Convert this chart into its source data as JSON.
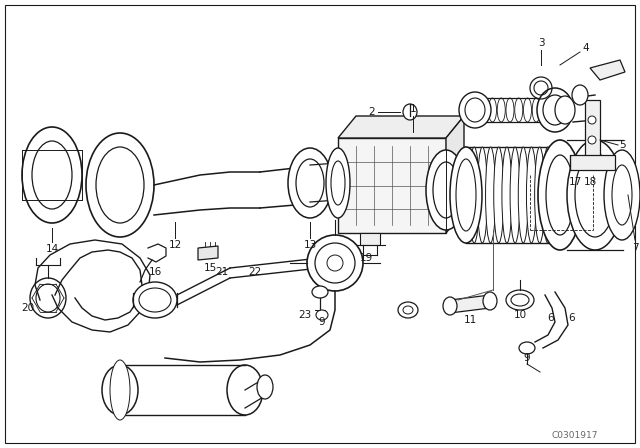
{
  "bg_color": "#ffffff",
  "line_color": "#1a1a1a",
  "fig_width": 6.4,
  "fig_height": 4.48,
  "dpi": 100,
  "watermark": "C0301917",
  "lw": 0.9
}
